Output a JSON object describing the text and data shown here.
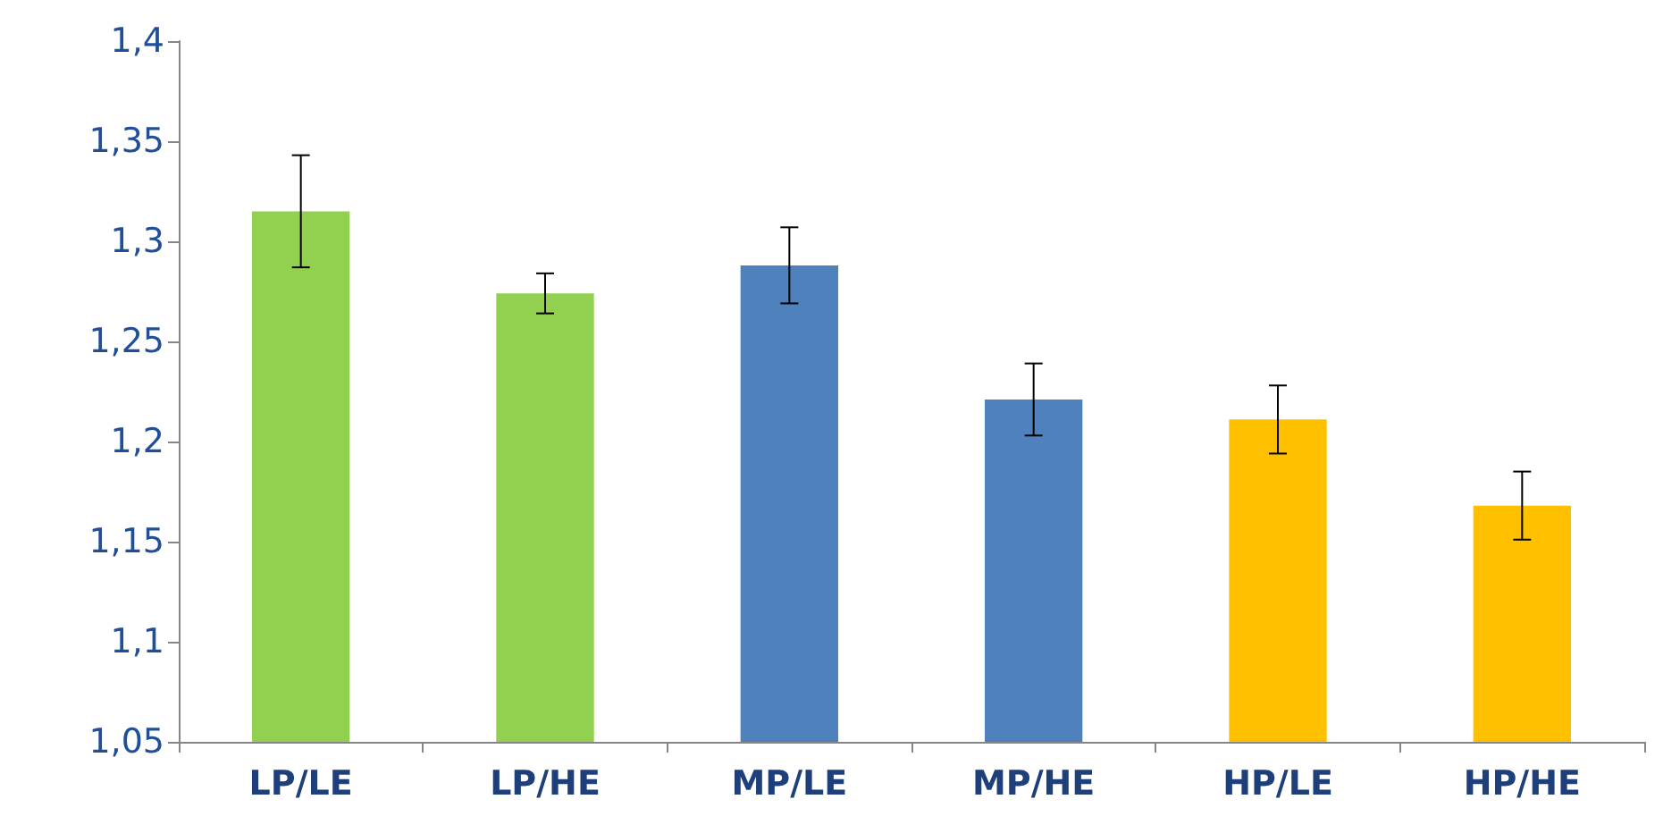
{
  "chart_data": {
    "type": "bar",
    "categories": [
      "LP/LE",
      "LP/HE",
      "MP/LE",
      "MP/HE",
      "HP/LE",
      "HP/HE"
    ],
    "values": [
      1.315,
      1.274,
      1.288,
      1.221,
      1.211,
      1.168
    ],
    "colors": [
      "#92d050",
      "#92d050",
      "#4f81bd",
      "#4f81bd",
      "#ffc000",
      "#ffc000"
    ],
    "errors": [
      0.028,
      0.01,
      0.019,
      0.018,
      0.017,
      0.017
    ],
    "ylim": [
      1.05,
      1.4
    ],
    "yticks": [
      {
        "value": 1.05,
        "label": "1,05"
      },
      {
        "value": 1.1,
        "label": "1,1"
      },
      {
        "value": 1.15,
        "label": "1,15"
      },
      {
        "value": 1.2,
        "label": "1,2"
      },
      {
        "value": 1.25,
        "label": "1,25"
      },
      {
        "value": 1.3,
        "label": "1,3"
      },
      {
        "value": 1.35,
        "label": "1,35"
      },
      {
        "value": 1.4,
        "label": "1,4"
      }
    ],
    "grid": false
  }
}
